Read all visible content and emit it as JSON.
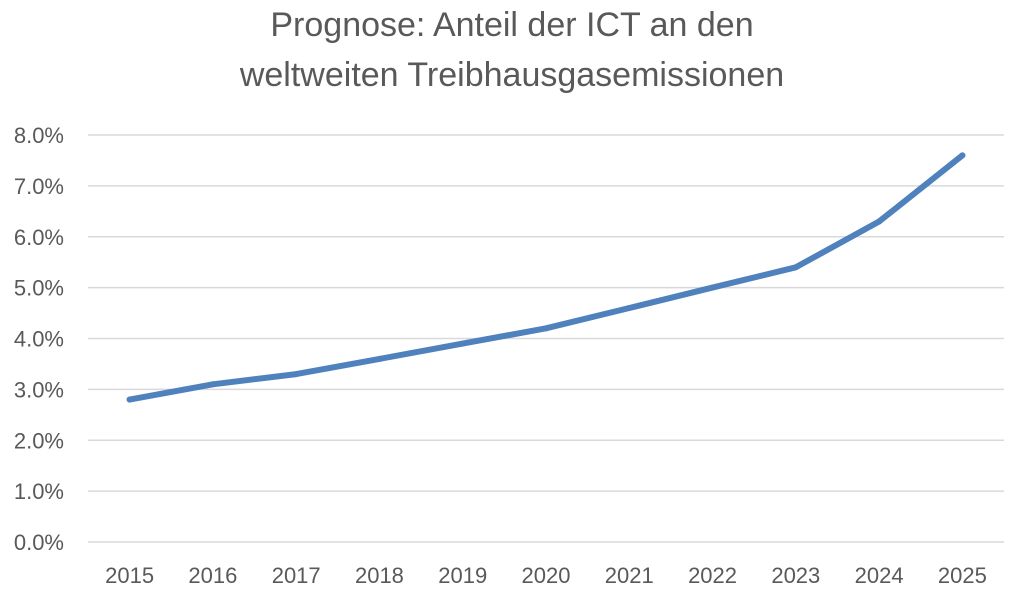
{
  "chart_data": {
    "type": "line",
    "title_lines": [
      "Prognose: Anteil der ICT an den",
      "weltweiten Treibhausgasemissionen"
    ],
    "xlabel": "",
    "ylabel": "",
    "categories": [
      "2015",
      "2016",
      "2017",
      "2018",
      "2019",
      "2020",
      "2021",
      "2022",
      "2023",
      "2024",
      "2025"
    ],
    "series": [
      {
        "values": [
          2.8,
          3.1,
          3.3,
          3.6,
          3.9,
          4.2,
          4.6,
          5.0,
          5.4,
          6.3,
          7.6
        ]
      }
    ],
    "ylim": [
      0,
      8
    ],
    "yticks": [
      0,
      1,
      2,
      3,
      4,
      5,
      6,
      7,
      8
    ],
    "ytick_labels": [
      "0.0%",
      "1.0%",
      "2.0%",
      "3.0%",
      "4.0%",
      "5.0%",
      "6.0%",
      "7.0%",
      "8.0%"
    ],
    "grid": "horizontal",
    "legend": "none",
    "colors": {
      "line": "#4f81bd",
      "grid": "#d9d9d9",
      "text": "#595959"
    }
  }
}
